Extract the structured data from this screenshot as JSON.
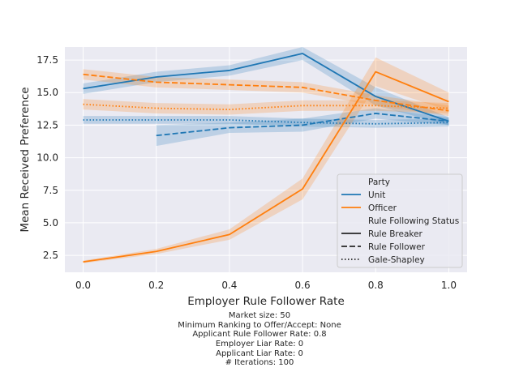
{
  "chart_data": {
    "type": "line",
    "title": "",
    "xlabel": "Employer Rule Follower Rate",
    "ylabel": "Mean Received Preference",
    "xlim": [
      -0.05,
      1.05
    ],
    "ylim": [
      1.2,
      18.5
    ],
    "x_ticks": [
      "0.0",
      "0.2",
      "0.4",
      "0.6",
      "0.8",
      "1.0"
    ],
    "y_ticks": [
      "2.5",
      "5.0",
      "7.5",
      "10.0",
      "12.5",
      "15.0",
      "17.5"
    ],
    "grid": true,
    "legend_position": "lower-right",
    "legend": {
      "hue_title": "Party",
      "hue_entries": [
        {
          "label": "Unit",
          "color": "#1f77b4"
        },
        {
          "label": "Officer",
          "color": "#ff7f0e"
        }
      ],
      "style_title": "Rule Following Status",
      "style_entries": [
        {
          "label": "Rule Breaker",
          "dash": "solid"
        },
        {
          "label": "Rule Follower",
          "dash": "dashed"
        },
        {
          "label": "Gale-Shapley",
          "dash": "dotted"
        }
      ]
    },
    "series": [
      {
        "party": "Unit",
        "status": "Rule Breaker",
        "color": "#1f77b4",
        "dash": "solid",
        "x": [
          0.0,
          0.2,
          0.4,
          0.6,
          0.8,
          1.0
        ],
        "y": [
          15.3,
          16.2,
          16.7,
          18.0,
          14.7,
          12.8
        ],
        "lo": [
          14.9,
          15.8,
          16.3,
          17.5,
          14.0,
          12.5
        ],
        "hi": [
          15.7,
          16.6,
          17.1,
          18.5,
          15.4,
          13.1
        ]
      },
      {
        "party": "Unit",
        "status": "Rule Follower",
        "color": "#1f77b4",
        "dash": "dashed",
        "x": [
          0.2,
          0.4,
          0.6,
          0.8,
          1.0
        ],
        "y": [
          11.7,
          12.3,
          12.5,
          13.4,
          12.8
        ],
        "lo": [
          10.9,
          11.9,
          12.0,
          13.0,
          12.5
        ],
        "hi": [
          12.5,
          12.7,
          13.0,
          13.8,
          13.1
        ]
      },
      {
        "party": "Unit",
        "status": "Gale-Shapley",
        "color": "#1f77b4",
        "dash": "dotted",
        "x": [
          0.0,
          0.2,
          0.4,
          0.6,
          0.8,
          1.0
        ],
        "y": [
          12.9,
          12.9,
          12.9,
          12.7,
          12.6,
          12.7
        ],
        "lo": [
          12.6,
          12.6,
          12.6,
          12.4,
          12.3,
          12.4
        ],
        "hi": [
          13.2,
          13.2,
          13.2,
          13.0,
          12.9,
          13.0
        ]
      },
      {
        "party": "Officer",
        "status": "Rule Breaker",
        "color": "#ff7f0e",
        "dash": "solid",
        "x": [
          0.0,
          0.2,
          0.4,
          0.6,
          0.8,
          1.0
        ],
        "y": [
          2.0,
          2.8,
          4.1,
          7.6,
          16.6,
          14.3
        ],
        "lo": [
          1.9,
          2.6,
          3.7,
          6.8,
          15.5,
          13.6
        ],
        "hi": [
          2.1,
          3.0,
          4.5,
          8.4,
          17.7,
          15.0
        ]
      },
      {
        "party": "Officer",
        "status": "Rule Follower",
        "color": "#ff7f0e",
        "dash": "dashed",
        "x": [
          0.0,
          0.2,
          0.4,
          0.6,
          0.8,
          1.0
        ],
        "y": [
          16.4,
          15.8,
          15.6,
          15.4,
          14.4,
          13.6
        ],
        "lo": [
          16.0,
          15.4,
          15.2,
          15.0,
          14.0,
          13.2
        ],
        "hi": [
          16.8,
          16.2,
          16.0,
          15.8,
          14.8,
          14.0
        ]
      },
      {
        "party": "Officer",
        "status": "Gale-Shapley",
        "color": "#ff7f0e",
        "dash": "dotted",
        "x": [
          0.0,
          0.2,
          0.4,
          0.6,
          0.8,
          1.0
        ],
        "y": [
          14.1,
          13.8,
          13.7,
          14.0,
          14.0,
          13.8
        ],
        "lo": [
          13.7,
          13.4,
          13.3,
          13.6,
          13.6,
          13.4
        ],
        "hi": [
          14.5,
          14.2,
          14.1,
          14.4,
          14.4,
          14.2
        ]
      }
    ],
    "caption_lines": [
      "Market size: 50",
      "Minimum Ranking to Offer/Accept: None",
      "Applicant Rule Follower Rate: 0.8",
      "Employer Liar Rate: 0",
      "Applicant Liar Rate: 0",
      "# Iterations: 100"
    ]
  }
}
